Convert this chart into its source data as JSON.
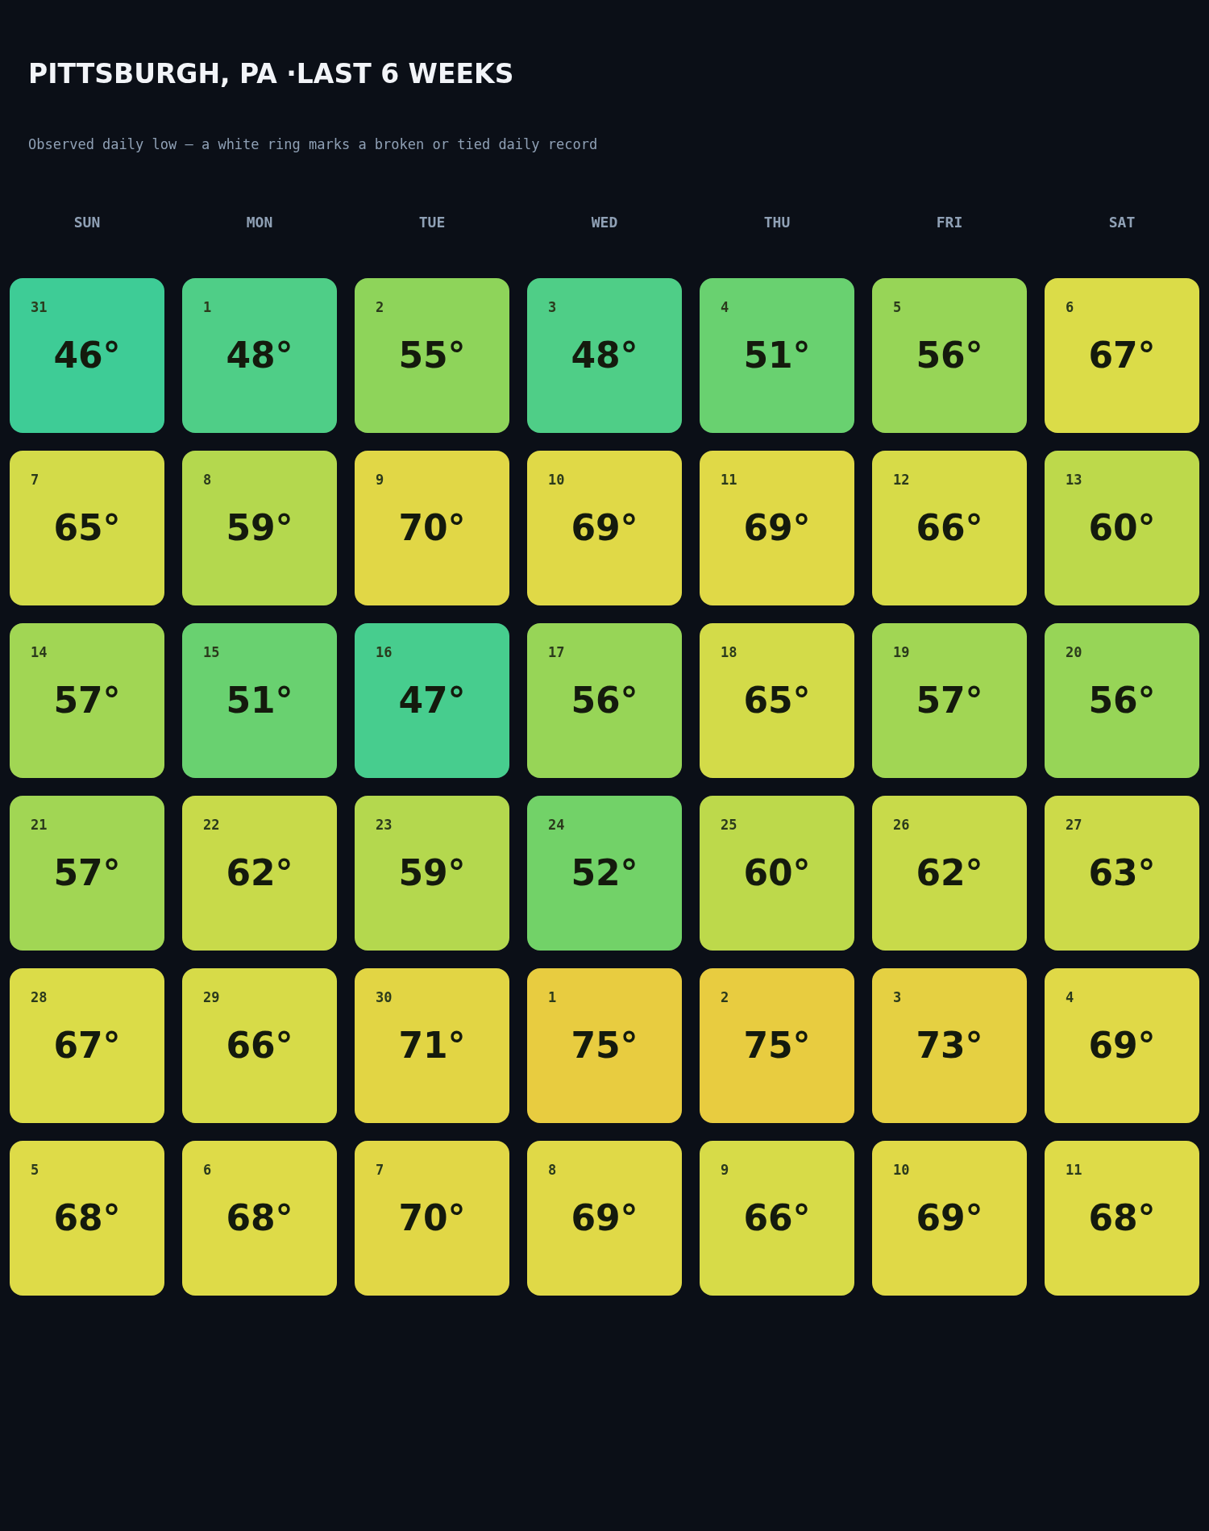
{
  "chart_data": {
    "type": "heatmap",
    "title": "PITTSBURGH, PA ·LAST 6 WEEKS",
    "subtitle": "Observed daily low — a white ring marks a broken or tied daily record",
    "categories": [
      "SUN",
      "MON",
      "TUE",
      "WED",
      "THU",
      "FRI",
      "SAT"
    ],
    "y_categories": [
      null,
      null,
      null,
      null,
      null,
      null
    ],
    "cells": [
      [
        46,
        48,
        55,
        48,
        51,
        56,
        67
      ],
      [
        65,
        59,
        70,
        69,
        69,
        66,
        60
      ],
      [
        57,
        51,
        47,
        56,
        65,
        57,
        56
      ],
      [
        57,
        62,
        59,
        52,
        60,
        62,
        63
      ],
      [
        67,
        66,
        71,
        75,
        75,
        73,
        69
      ],
      [
        68,
        68,
        70,
        69,
        66,
        69,
        68
      ]
    ],
    "cell_labels": [
      [
        "46°",
        "48°",
        "55°",
        "48°",
        "51°",
        "56°",
        "67°"
      ],
      [
        "65°",
        "59°",
        "70°",
        "69°",
        "69°",
        "66°",
        "60°"
      ],
      [
        "57°",
        "51°",
        "47°",
        "56°",
        "65°",
        "57°",
        "56°"
      ],
      [
        "57°",
        "62°",
        "59°",
        "52°",
        "60°",
        "62°",
        "63°"
      ],
      [
        "67°",
        "66°",
        "71°",
        "75°",
        "75°",
        "73°",
        "69°"
      ],
      [
        "68°",
        "68°",
        "70°",
        "69°",
        "66°",
        "69°",
        "68°"
      ]
    ],
    "annotations": [
      "31",
      "1",
      "2",
      "3",
      "4",
      "5",
      "6",
      "7",
      "8",
      "9",
      "10",
      "11",
      "12",
      "13",
      "14",
      "15",
      "16",
      "17",
      "18",
      "19",
      "20",
      "21",
      "22",
      "23",
      "24",
      "25",
      "26",
      "27",
      "28",
      "29",
      "30",
      "1",
      "2",
      "3",
      "4",
      "5",
      "6",
      "7",
      "8",
      "9",
      "10",
      "11"
    ]
  }
}
